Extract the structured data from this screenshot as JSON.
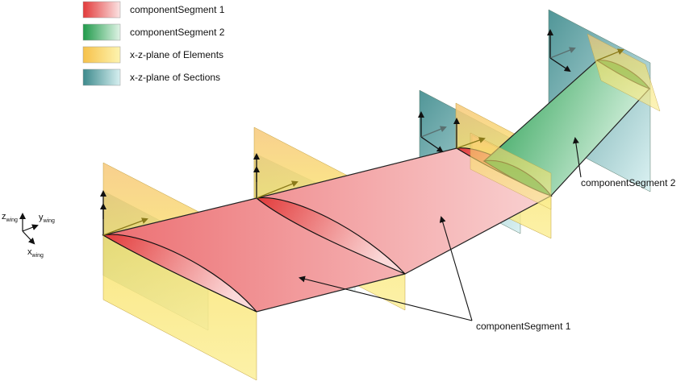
{
  "legend": {
    "items": [
      {
        "label": "componentSegment 1",
        "color_start": "#e23a3a",
        "color_end": "#fbe3e3"
      },
      {
        "label": "componentSegment 2",
        "color_start": "#1f9a4a",
        "color_end": "#e0f4e6"
      },
      {
        "label": "x-z-plane of Elements",
        "color_start": "#f6c14a",
        "color_end": "#fdf4b0"
      },
      {
        "label": "x-z-plane of Sections",
        "color_start": "#3d8a8c",
        "color_end": "#d7f0f1"
      }
    ]
  },
  "axes": {
    "z_main": "z",
    "z_sub": "wing",
    "y_main": "y",
    "y_sub": "wing",
    "x_main": "x",
    "x_sub": "wing"
  },
  "callouts": {
    "segment2": "componentSegment 2",
    "segment1": "componentSegment 1"
  },
  "colors": {
    "segment1": "#e8676b",
    "segment2": "#3daa63",
    "element_plane": "#f8d95a",
    "section_plane": "#5d9ea0",
    "arrow_black": "#111111",
    "arrow_olive": "#8a7a1a"
  }
}
